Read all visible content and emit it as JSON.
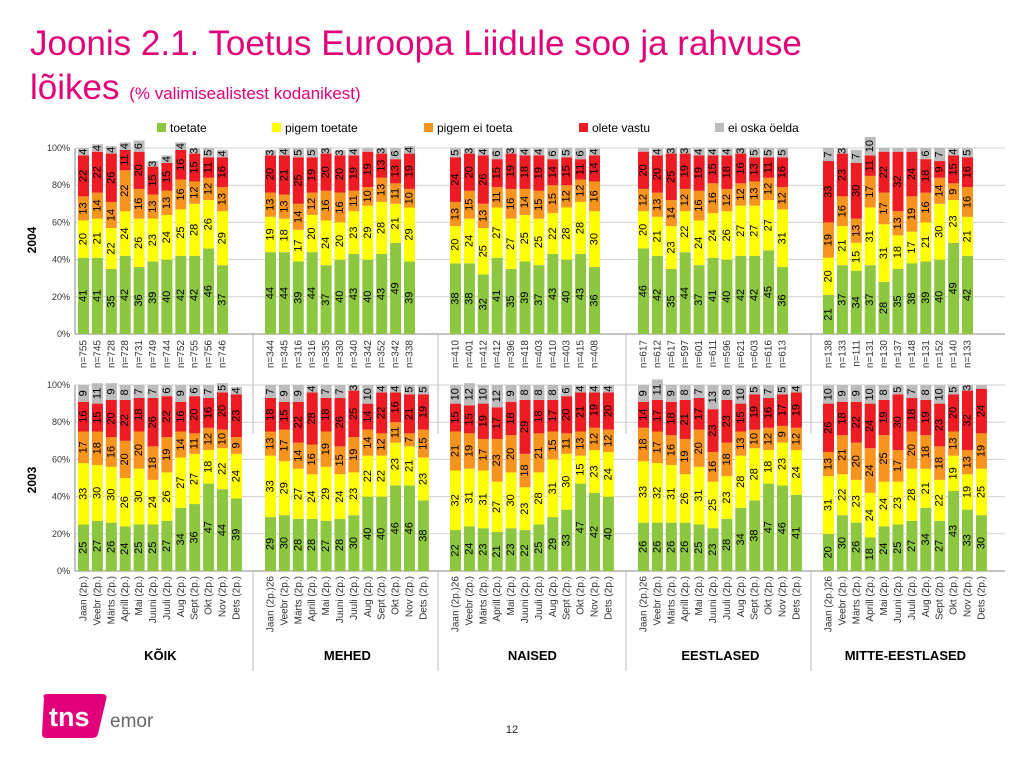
{
  "title": {
    "main_line1": "Joonis 2.1. Toetus Euroopa Liidule soo ja rahvuse",
    "main_line2": "lõikes",
    "subtitle": "(% valimisealistest kodanikest)"
  },
  "page_number": "12",
  "logo": {
    "mark": "tns",
    "sub": "emor",
    "tm": "TM"
  },
  "colors": {
    "toetate": "#8dc63f",
    "pigem_toetate": "#ffff00",
    "pigem_ei_toeta": "#f7941d",
    "olete_vastu": "#ed1c24",
    "ei_oska": "#bcbcbc",
    "accent": "#e2007a"
  },
  "chart_data": {
    "type": "bar",
    "stacked": true,
    "percent": true,
    "legend": {
      "placement": "top",
      "entries": [
        "toetate",
        "pigem toetate",
        "pigem ei toeta",
        "olete vastu",
        "ei oska öelda"
      ]
    },
    "y_ticks": [
      "0%",
      "20%",
      "40%",
      "60%",
      "80%",
      "100%"
    ],
    "ylim": [
      0,
      100
    ],
    "group_labels": [
      "KÕIK",
      "MEHED",
      "NAISED",
      "EESTLASED",
      "MITTE-EESTLASED"
    ],
    "panels": [
      {
        "label": "2004",
        "groups": [
          {
            "name": "KÕIK",
            "categories": [
              "n=755",
              "n=745",
              "n=728",
              "n=728",
              "n=731",
              "n=749",
              "n=744",
              "n=752",
              "n=755",
              "n=756",
              "n=746"
            ],
            "toetate": [
              41,
              41,
              35,
              42,
              36,
              39,
              40,
              42,
              42,
              46,
              37
            ],
            "pigem_toetate": [
              20,
              21,
              22,
              24,
              26,
              23,
              24,
              25,
              28,
              26,
              29
            ],
            "pigem_ei_toeta": [
              13,
              14,
              14,
              22,
              16,
              13,
              13,
              16,
              12,
              12,
              13
            ],
            "olete_vastu": [
              22,
              22,
              26,
              11,
              20,
              15,
              15,
              16,
              15,
              11,
              16
            ],
            "ei_oska": [
              4,
              4,
              4,
              4,
              6,
              3,
              4,
              4,
              3,
              5,
              4
            ]
          },
          {
            "name": "MEHED",
            "categories": [
              "n=344",
              "n=345",
              "n=316",
              "n=316",
              "n=335",
              "n=330",
              "n=340",
              "n=342",
              "n=352",
              "n=342",
              "n=338"
            ],
            "toetate": [
              44,
              44,
              39,
              44,
              37,
              40,
              43,
              40,
              43,
              49,
              39
            ],
            "pigem_toetate": [
              19,
              18,
              17,
              20,
              24,
              20,
              23,
              29,
              28,
              21,
              29
            ],
            "pigem_ei_toeta": [
              13,
              13,
              14,
              12,
              16,
              16,
              11,
              10,
              13,
              11,
              10
            ],
            "olete_vastu": [
              20,
              21,
              25,
              19,
              20,
              20,
              19,
              19,
              13,
              13,
              19
            ],
            "ei_oska": [
              3,
              4,
              5,
              5,
              3,
              3,
              4,
              2,
              3,
              6,
              4
            ]
          },
          {
            "name": "NAISED",
            "categories": [
              "n=410",
              "n=401",
              "n=412",
              "n=412",
              "n=396",
              "n=418",
              "n=403",
              "n=410",
              "n=403",
              "n=415",
              "n=408"
            ],
            "toetate": [
              38,
              38,
              32,
              41,
              35,
              39,
              37,
              43,
              40,
              43,
              36
            ],
            "pigem_toetate": [
              20,
              24,
              25,
              27,
              27,
              25,
              25,
              22,
              28,
              28,
              30
            ],
            "pigem_ei_toeta": [
              13,
              15,
              13,
              11,
              16,
              14,
              15,
              15,
              12,
              12,
              16
            ],
            "olete_vastu": [
              24,
              20,
              26,
              15,
              19,
              18,
              19,
              14,
              15,
              11,
              14
            ],
            "ei_oska": [
              5,
              3,
              4,
              6,
              3,
              4,
              4,
              6,
              5,
              6,
              4
            ]
          },
          {
            "name": "EESTLASED",
            "categories": [
              "n=617",
              "n=612",
              "n=617",
              "n=597",
              "n=601",
              "n=611",
              "n=596",
              "n=621",
              "n=603",
              "n=616",
              "n=613"
            ],
            "toetate": [
              46,
              42,
              35,
              44,
              37,
              41,
              40,
              42,
              42,
              45,
              36
            ],
            "pigem_toetate": [
              20,
              21,
              23,
              22,
              24,
              24,
              26,
              27,
              27,
              27,
              31
            ],
            "pigem_ei_toeta": [
              12,
              13,
              14,
              12,
              16,
              16,
              12,
              12,
              13,
              12,
              12
            ],
            "olete_vastu": [
              20,
              20,
              25,
              19,
              19,
              15,
              18,
              16,
              13,
              11,
              16
            ],
            "ei_oska": [
              2,
              4,
              3,
              3,
              4,
              4,
              4,
              3,
              5,
              5,
              5
            ]
          },
          {
            "name": "MITTE-EESTLASED",
            "categories": [
              "n=138",
              "n=133",
              "n=111",
              "n=131",
              "n=130",
              "n=137",
              "n=148",
              "n=131",
              "n=152",
              "n=140",
              "n=133"
            ],
            "toetate": [
              21,
              37,
              34,
              37,
              28,
              35,
              38,
              39,
              40,
              49,
              42
            ],
            "pigem_toetate": [
              20,
              21,
              15,
              31,
              31,
              18,
              17,
              21,
              30,
              23,
              21
            ],
            "pigem_ei_toeta": [
              19,
              16,
              13,
              17,
              17,
              13,
              19,
              16,
              14,
              9,
              16
            ],
            "olete_vastu": [
              33,
              23,
              30,
              11,
              22,
              32,
              24,
              18,
              9,
              15,
              16
            ],
            "ei_oska": [
              7,
              3,
              7,
              10,
              2,
              2,
              2,
              6,
              7,
              4,
              5
            ]
          }
        ]
      },
      {
        "label": "2003",
        "groups": [
          {
            "name": "KÕIK",
            "categories": [
              "Jaan (2p.)",
              "Veebr (2p.)",
              "Märts (2p.)",
              "Aprill (2p.)",
              "Mai (2p.)",
              "Juuni (2p.)",
              "Juuli (2p.)",
              "Aug (2p.)",
              "Sept (2p.)",
              "Okt (2p.)",
              "Nov (2p.)",
              "Dets (2p.)"
            ],
            "toetate": [
              25,
              27,
              26,
              24,
              25,
              25,
              27,
              34,
              36,
              47,
              44,
              39
            ],
            "pigem_toetate": [
              33,
              30,
              30,
              26,
              30,
              24,
              26,
              27,
              27,
              18,
              22,
              24
            ],
            "pigem_ei_toeta": [
              17,
              18,
              16,
              20,
              20,
              18,
              19,
              14,
              11,
              12,
              10,
              9
            ],
            "olete_vastu": [
              16,
              15,
              20,
              22,
              18,
              26,
              22,
              16,
              20,
              16,
              20,
              23
            ],
            "ei_oska": [
              9,
              11,
              9,
              8,
              7,
              7,
              6,
              9,
              6,
              7,
              5,
              4
            ]
          },
          {
            "name": "MEHED",
            "categories": [
              "Jaan (2p.)26",
              "Veebr (2p.)",
              "Märts (2p.)",
              "Aprill (2p.)",
              "Mai (2p.)",
              "Juuni (2p.)",
              "Juuli (2p.)",
              "Aug (2p.)",
              "Sept (2p.)",
              "Okt (2p.)",
              "Nov (2p.)",
              "Dets (2p.)"
            ],
            "toetate": [
              29,
              30,
              28,
              28,
              27,
              28,
              30,
              40,
              40,
              46,
              46,
              38
            ],
            "pigem_toetate": [
              33,
              29,
              27,
              24,
              29,
              24,
              23,
              22,
              22,
              23,
              21,
              23
            ],
            "pigem_ei_toeta": [
              13,
              17,
              14,
              16,
              19,
              15,
              19,
              14,
              12,
              11,
              7,
              15
            ],
            "olete_vastu": [
              18,
              15,
              22,
              28,
              18,
              26,
              25,
              14,
              22,
              16,
              21,
              19
            ],
            "ei_oska": [
              7,
              9,
              9,
              4,
              7,
              7,
              3,
              10,
              4,
              4,
              5,
              5
            ]
          },
          {
            "name": "NAISED",
            "categories": [
              "Jaan (2p.)26",
              "Veebr (2p.)",
              "Märts (2p.)",
              "Aprill (2p.)",
              "Mai (2p.)",
              "Juuni (2p.)",
              "Juuli (2p.)",
              "Aug (2p.)",
              "Sept (2p.)",
              "Okt (2p.)",
              "Nov (2p.)",
              "Dets (2p.)"
            ],
            "toetate": [
              22,
              24,
              23,
              21,
              23,
              22,
              25,
              29,
              33,
              47,
              42,
              40
            ],
            "pigem_toetate": [
              32,
              31,
              31,
              27,
              30,
              23,
              28,
              31,
              30,
              15,
              23,
              24
            ],
            "pigem_ei_toeta": [
              21,
              19,
              17,
              23,
              20,
              18,
              21,
              15,
              11,
              13,
              12,
              12
            ],
            "olete_vastu": [
              15,
              15,
              19,
              17,
              18,
              29,
              18,
              17,
              20,
              21,
              19,
              20
            ],
            "ei_oska": [
              10,
              12,
              10,
              12,
              9,
              8,
              8,
              8,
              6,
              4,
              4,
              4
            ]
          },
          {
            "name": "EESTLASED",
            "categories": [
              "Jaan (2p.)26",
              "Veebr (2p.)",
              "Märts (2p.)",
              "Aprill (2p.)",
              "Mai (2p.)",
              "Juuni (2p.)",
              "Juuli (2p.)",
              "Aug (2p.)",
              "Sept (2p.)",
              "Okt (2p.)",
              "Nov (2p.)",
              "Dets (2p.)"
            ],
            "toetate": [
              26,
              26,
              26,
              26,
              25,
              23,
              28,
              34,
              38,
              47,
              46,
              41
            ],
            "pigem_toetate": [
              33,
              32,
              31,
              26,
              31,
              25,
              23,
              28,
              28,
              18,
              23,
              24
            ],
            "pigem_ei_toeta": [
              18,
              17,
              16,
              19,
              20,
              16,
              18,
              13,
              10,
              12,
              9,
              12
            ],
            "olete_vastu": [
              14,
              17,
              18,
              21,
              17,
              23,
              23,
              15,
              19,
              16,
              17,
              19
            ],
            "ei_oska": [
              9,
              11,
              9,
              8,
              7,
              13,
              8,
              10,
              5,
              7,
              5,
              4
            ]
          },
          {
            "name": "MITTE-EESTLASED",
            "categories": [
              "Jaan (2p.)26",
              "Veebr (2p.)",
              "Märts (2p.)",
              "Aprill (2p.)",
              "Mai (2p.)",
              "Juuni (2p.)",
              "Juuli (2p.)",
              "Aug (2p.)",
              "Sept (2p.)",
              "Okt (2p.)",
              "Nov (2p.)",
              "Dets (2p.)"
            ],
            "toetate": [
              20,
              30,
              26,
              18,
              24,
              25,
              27,
              34,
              27,
              43,
              33,
              30
            ],
            "pigem_toetate": [
              31,
              22,
              23,
              24,
              24,
              23,
              28,
              21,
              22,
              19,
              19,
              25
            ],
            "pigem_ei_toeta": [
              13,
              21,
              20,
              24,
              25,
              17,
              20,
              18,
              18,
              13,
              13,
              19
            ],
            "olete_vastu": [
              26,
              18,
              22,
              24,
              19,
              30,
              18,
              19,
              23,
              20,
              32,
              24
            ],
            "ei_oska": [
              10,
              9,
              9,
              10,
              8,
              5,
              7,
              8,
              10,
              5,
              3,
              2
            ]
          }
        ]
      }
    ]
  }
}
